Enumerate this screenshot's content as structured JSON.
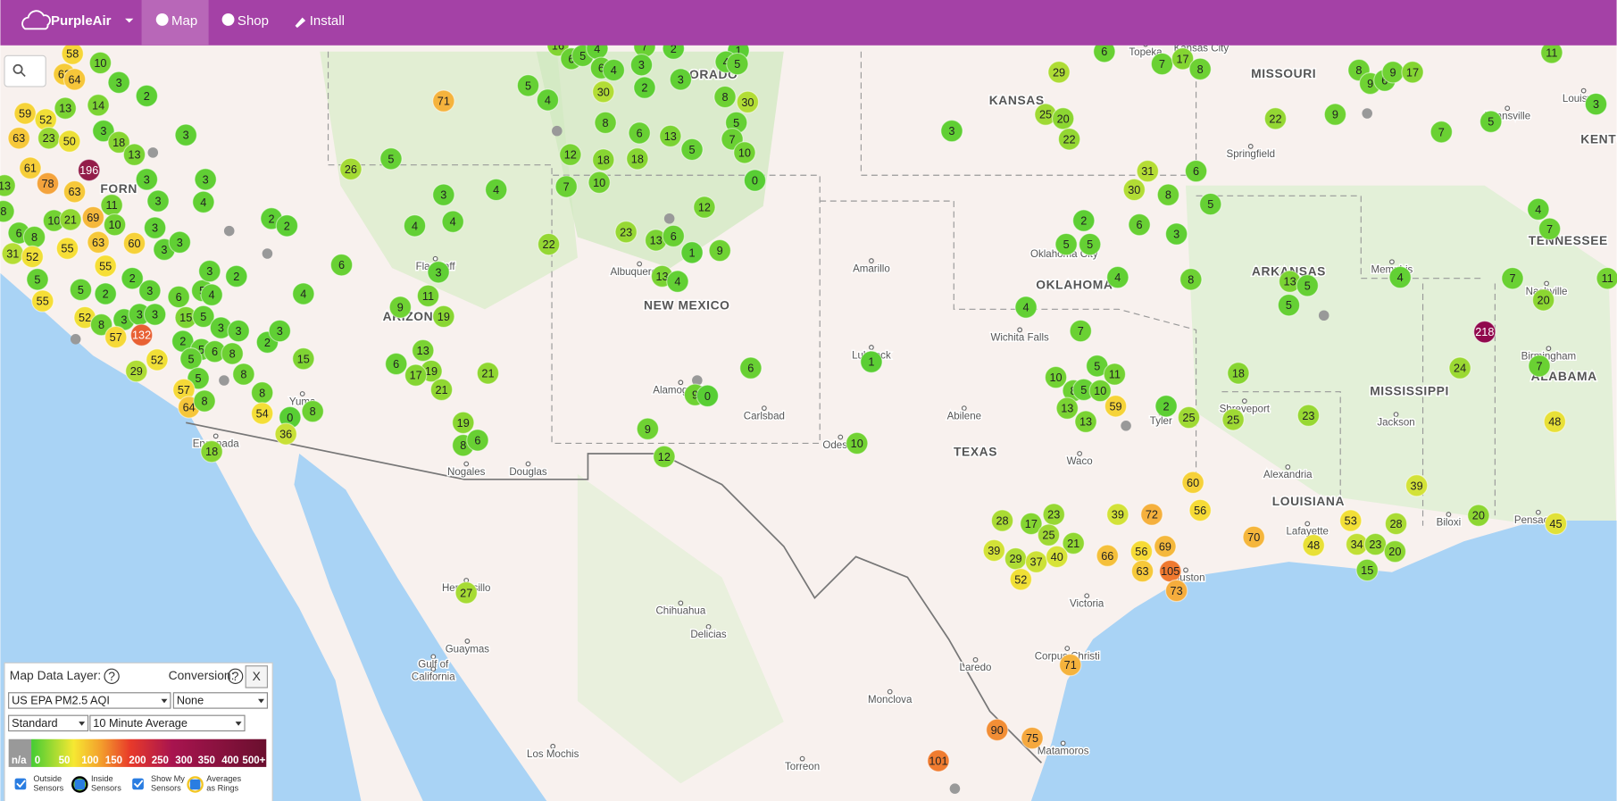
{
  "nav": {
    "brand": "PurpleAir",
    "items": [
      "Map",
      "Shop",
      "Install"
    ]
  },
  "markers": [
    58,
    10,
    62,
    64,
    3,
    2,
    59,
    52,
    13,
    14,
    63,
    23,
    50,
    3,
    18,
    13,
    3,
    196,
    13,
    78,
    63,
    61,
    8,
    10,
    21,
    69,
    11,
    10,
    3,
    3,
    3,
    4,
    3,
    60,
    3,
    3,
    6,
    8,
    31,
    52,
    55,
    63,
    55,
    2,
    5,
    55,
    5,
    2,
    52,
    8,
    3,
    3,
    3,
    3,
    6,
    5,
    4,
    15,
    5,
    57,
    132,
    52,
    2,
    5,
    5,
    6,
    8,
    3,
    3,
    3,
    2,
    2,
    3,
    15,
    8,
    8,
    5,
    57,
    64,
    8,
    29,
    18,
    54,
    0,
    8,
    36,
    2,
    2,
    26,
    5,
    71,
    3,
    4,
    4,
    4,
    6,
    4,
    3,
    11,
    9,
    19,
    13,
    6,
    19,
    17,
    21,
    21,
    19,
    8,
    6,
    16,
    6,
    5,
    4,
    7,
    2,
    1,
    3,
    6,
    4,
    4,
    5,
    3,
    2,
    5,
    4,
    30,
    8,
    30,
    8,
    6,
    13,
    5,
    5,
    7,
    10,
    12,
    18,
    18,
    7,
    10,
    0,
    12,
    23,
    13,
    6,
    1,
    9,
    22,
    13,
    4,
    6,
    9,
    0,
    9,
    12,
    1,
    10,
    6,
    29,
    7,
    17,
    8,
    25,
    20,
    22,
    3,
    31,
    30,
    8,
    6,
    5,
    2,
    6,
    3,
    5,
    5,
    4,
    8,
    4,
    7,
    5,
    11,
    10,
    8,
    5,
    10,
    13,
    13,
    59,
    2,
    25,
    25,
    18,
    23,
    60,
    56,
    8,
    9,
    6,
    9,
    17,
    22,
    9,
    7,
    5,
    11,
    3,
    4,
    7,
    4,
    13,
    5,
    5,
    7,
    20,
    11,
    218,
    24,
    7,
    48,
    39,
    20,
    45,
    53,
    34,
    23,
    28,
    20,
    15,
    48,
    70,
    39,
    72,
    56,
    69,
    63,
    105,
    73,
    66,
    28,
    17,
    23,
    25,
    21,
    39,
    29,
    37,
    40,
    52,
    27,
    71,
    90,
    75,
    101
  ],
  "places": [
    "Topeka",
    "Kansas City",
    "KANSAS",
    "MISSOURI",
    "Springfield",
    "Evansville",
    "Louisville",
    "KENTU",
    "OKLAHOMA",
    "Oklahoma City",
    "Amarillo",
    "Lubbock",
    "Wichita Falls",
    "Abilene",
    "TEXAS",
    "Waco",
    "Tyler",
    "Shreveport",
    "ARKANSAS",
    "Memphis",
    "Nashville",
    "TENNESSEE",
    "Birmingham",
    "ALABAMA",
    "MISSISSIPPI",
    "Jackson",
    "Alexandria",
    "LOUISIANA",
    "Lafayette",
    "Biloxi",
    "Pensacola",
    "NEW MEXICO",
    "Albuquerque",
    "Alamogordo",
    "Carlsbad",
    "Odessa",
    "LORADO",
    "ARIZONA",
    "Flagstaff",
    "Yuma",
    "Ensenada",
    "Nogales",
    "Douglas",
    "Hermosillo",
    "Chihuahua",
    "Delicias",
    "Guaymas",
    "Gulf of",
    "California",
    "Monclova",
    "Laredo",
    "Victoria",
    "Corpus Christi",
    "Matamoros",
    "Los Mochis",
    "Torreon",
    "FORN",
    "Houston"
  ],
  "panel": {
    "layer_label": "Map Data Layer:",
    "help": "?",
    "conversion_label": "Conversion:",
    "close": "X",
    "selects": [
      "US EPA PM2.5 AQI",
      "None",
      "Standard",
      "10 Minute Average"
    ],
    "scale": [
      "n/a",
      "0",
      "50",
      "100",
      "150",
      "200",
      "250",
      "300",
      "350",
      "400",
      "500+"
    ],
    "options": [
      [
        "Outside",
        "Sensors"
      ],
      [
        "Inside",
        "Sensors"
      ],
      [
        "Show My",
        "Sensors"
      ],
      [
        "Averages",
        "as Rings"
      ]
    ]
  }
}
